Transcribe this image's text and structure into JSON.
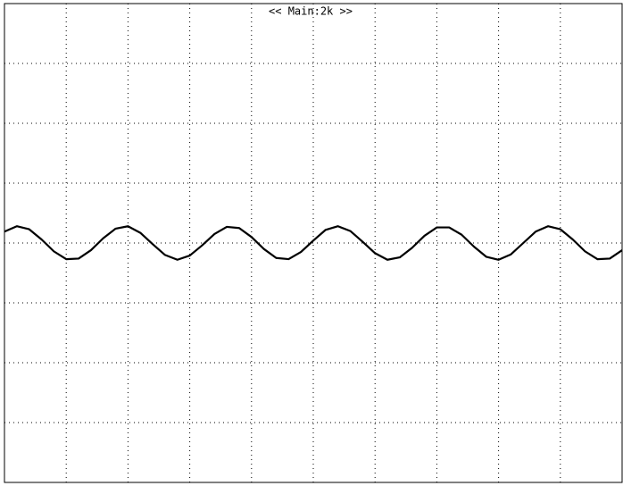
{
  "chart_data": {
    "type": "line",
    "title": "<< Main:2k >>",
    "x": [
      0,
      0.2,
      0.4,
      0.6,
      0.8,
      1,
      1.2,
      1.4,
      1.6,
      1.8,
      2,
      2.2,
      2.4,
      2.6,
      2.8,
      3,
      3.2,
      3.4,
      3.6,
      3.8,
      4,
      4.2,
      4.4,
      4.6,
      4.8,
      5,
      5.2,
      5.4,
      5.6,
      5.8,
      6,
      6.2,
      6.4,
      6.6,
      6.8,
      7,
      7.2,
      7.4,
      7.6,
      7.8,
      8,
      8.2,
      8.4,
      8.6,
      8.8,
      9,
      9.2,
      9.4,
      9.6,
      9.8,
      10
    ],
    "series": [
      {
        "color": "#000000",
        "values": [
          0.19,
          0.28,
          0.23,
          0.06,
          -0.14,
          -0.27,
          -0.26,
          -0.12,
          0.08,
          0.24,
          0.28,
          0.17,
          -0.02,
          -0.2,
          -0.28,
          -0.21,
          -0.04,
          0.15,
          0.27,
          0.25,
          0.1,
          -0.1,
          -0.25,
          -0.27,
          -0.15,
          0.04,
          0.22,
          0.28,
          0.2,
          0.02,
          -0.17,
          -0.28,
          -0.24,
          -0.08,
          0.12,
          0.26,
          0.26,
          0.14,
          -0.06,
          -0.23,
          -0.28,
          -0.19,
          0,
          0.19,
          0.28,
          0.23,
          0.06,
          -0.14,
          -0.27,
          -0.26,
          -0.12
        ]
      }
    ],
    "xlim": [
      0,
      10
    ],
    "xticks": [
      1,
      2,
      3,
      4,
      5,
      6,
      7,
      8,
      9
    ],
    "ylim": [
      -4,
      4
    ],
    "yticks": [
      -3,
      -2,
      -1,
      0,
      1,
      2,
      3
    ],
    "grid": true
  }
}
